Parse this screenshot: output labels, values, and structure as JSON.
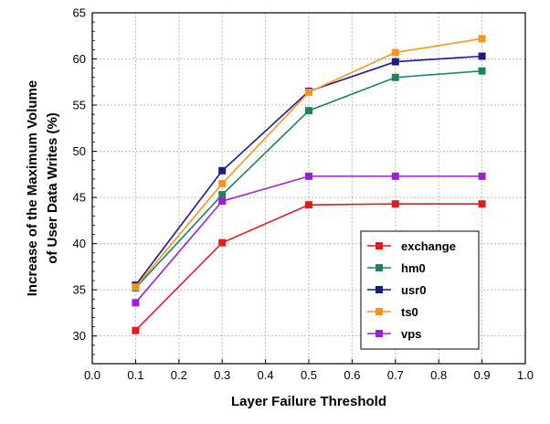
{
  "chart_data": {
    "type": "line",
    "title": "",
    "xlabel": "Layer Failure Threshold",
    "ylabel_line1": "Increase of the Maximum Volume",
    "ylabel_line2": "of User Data Writes (%)",
    "xlim": [
      0.0,
      1.0
    ],
    "ylim": [
      27,
      65
    ],
    "x_ticks": [
      "0.0",
      "0.1",
      "0.2",
      "0.3",
      "0.4",
      "0.5",
      "0.6",
      "0.7",
      "0.8",
      "0.9",
      "1.0"
    ],
    "y_ticks": [
      "30",
      "35",
      "40",
      "45",
      "50",
      "55",
      "60",
      "65"
    ],
    "grid": true,
    "legend_position": "bottom-right",
    "x": [
      0.1,
      0.3,
      0.5,
      0.7,
      0.9
    ],
    "series": [
      {
        "name": "exchange",
        "color": "#e41a1c",
        "values": [
          30.6,
          40.1,
          44.2,
          44.3,
          44.3
        ]
      },
      {
        "name": "hm0",
        "color": "#17875a",
        "values": [
          35.2,
          45.3,
          54.4,
          58.0,
          58.7
        ]
      },
      {
        "name": "usr0",
        "color": "#1a1a8c",
        "values": [
          35.5,
          47.9,
          56.5,
          59.7,
          60.3
        ]
      },
      {
        "name": "ts0",
        "color": "#f7941d",
        "values": [
          35.3,
          46.5,
          56.4,
          60.7,
          62.2
        ]
      },
      {
        "name": "vps",
        "color": "#9b1fd6",
        "values": [
          33.6,
          44.6,
          47.3,
          47.3,
          47.3
        ]
      }
    ]
  }
}
